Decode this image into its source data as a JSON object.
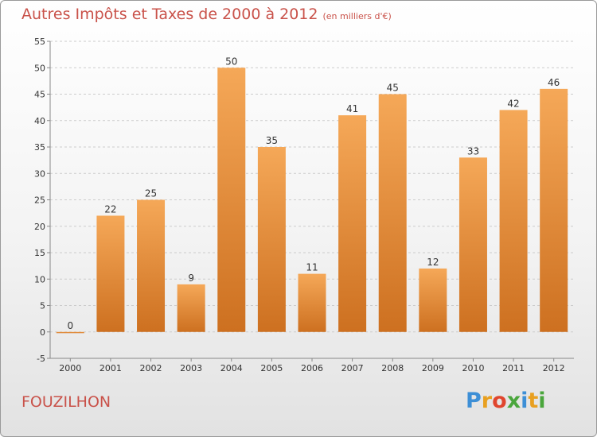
{
  "header": {
    "title": "Autres Impôts et Taxes de 2000 à 2012",
    "unit": "(en milliers d'€)"
  },
  "footer": {
    "place": "FOUZILHON",
    "logo_text": "Proxiti",
    "logo_colors": [
      "#3d8fd6",
      "#e8a020",
      "#e0462e",
      "#4aa63c",
      "#3d8fd6",
      "#e8a020",
      "#4aa63c"
    ]
  },
  "colors": {
    "bar_light": "#f5a858",
    "bar_dark": "#cd7020",
    "axis": "#888888",
    "grid": "#cccccc",
    "text": "#333333"
  },
  "chart_data": {
    "type": "bar",
    "categories": [
      "2000",
      "2001",
      "2002",
      "2003",
      "2004",
      "2005",
      "2006",
      "2007",
      "2008",
      "2009",
      "2010",
      "2011",
      "2012"
    ],
    "values": [
      0,
      22,
      25,
      9,
      50,
      35,
      11,
      41,
      45,
      12,
      33,
      42,
      46
    ],
    "data_labels": [
      "0",
      "22",
      "25",
      "9",
      "50",
      "35",
      "11",
      "41",
      "45",
      "12",
      "33",
      "42",
      "46"
    ],
    "title": "Autres Impôts et Taxes de 2000 à 2012",
    "ylabel": "",
    "xlabel": "",
    "ylim": [
      -5,
      55
    ],
    "yticks": [
      -5,
      0,
      5,
      10,
      15,
      20,
      25,
      30,
      35,
      40,
      45,
      50,
      55
    ],
    "ytick_labels": [
      "-5",
      "0",
      "5",
      "10",
      "15",
      "20",
      "25",
      "30",
      "35",
      "40",
      "45",
      "50",
      "55"
    ],
    "grid": true,
    "legend": "none"
  }
}
